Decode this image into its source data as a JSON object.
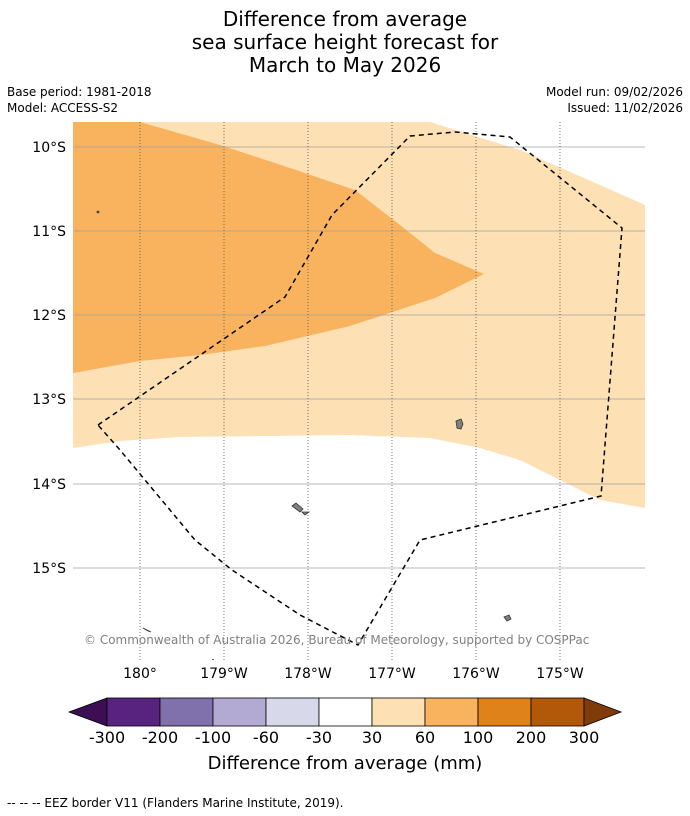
{
  "title": {
    "line1": "Difference from average",
    "line2": "sea surface height forecast for",
    "line3": "March to May 2026"
  },
  "meta": {
    "base_period": "Base period: 1981-2018",
    "model": "Model: ACCESS-S2",
    "model_run": "Model run: 09/02/2026",
    "issued": "Issued: 11/02/2026"
  },
  "map": {
    "lat_labels": [
      "10°S",
      "11°S",
      "12°S",
      "13°S",
      "14°S",
      "15°S"
    ],
    "lon_labels": [
      "180°",
      "179°W",
      "178°W",
      "177°W",
      "176°W",
      "175°W"
    ],
    "credit": "© Commonwealth of Australia 2026, Bureau of Meteorology, supported by COSPPac",
    "colors": {
      "band_30_60": "#fde0b4",
      "band_60_100": "#f9b35f",
      "land": "#808080",
      "eez_border": "#000000",
      "gridline": "#a0a0a0"
    }
  },
  "colorbar": {
    "labels": [
      "-300",
      "-200",
      "-100",
      "-60",
      "-30",
      "30",
      "60",
      "100",
      "200",
      "300"
    ],
    "colors": [
      "#3b0f51",
      "#57237e",
      "#8071ac",
      "#b2aad3",
      "#d7d8ea",
      "#ffffff",
      "#fde0b4",
      "#f9b35f",
      "#e0821a",
      "#b15809",
      "#7f3c0a"
    ],
    "title": "Difference from average (mm)"
  },
  "footer": "--  --  -- EEZ border V11 (Flanders Marine Institute, 2019)."
}
